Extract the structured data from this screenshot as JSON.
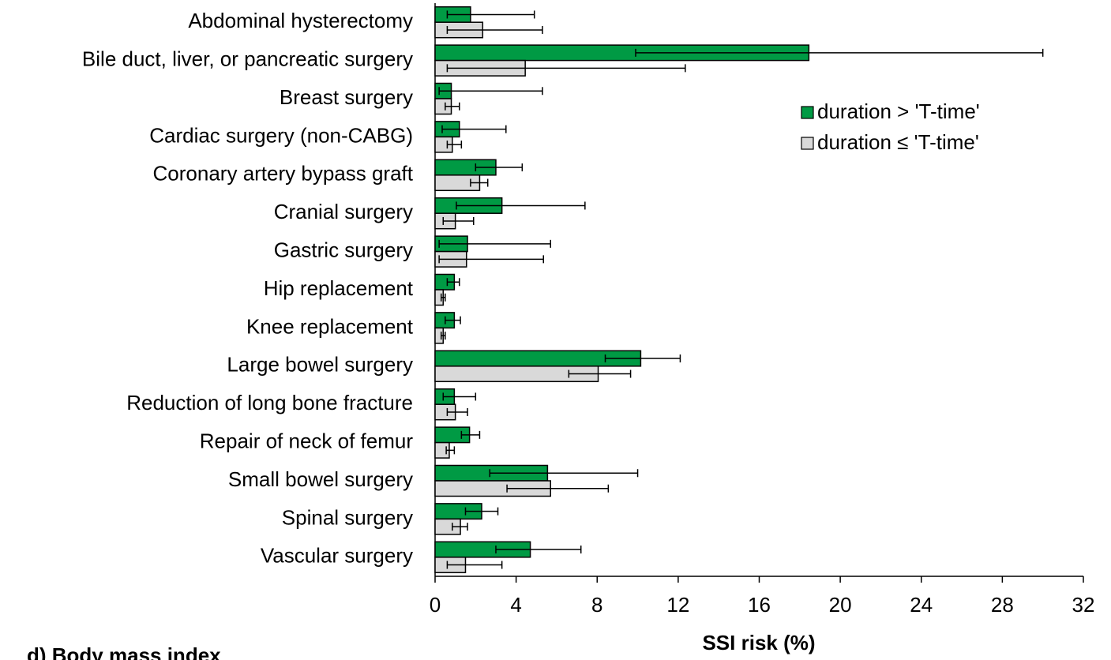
{
  "chart_data": {
    "type": "hbar_error",
    "xlabel": "SSI risk (%)",
    "categories": [
      "Abdominal hysterectomy",
      "Bile duct, liver, or pancreatic surgery",
      "Breast surgery",
      "Cardiac surgery (non-CABG)",
      "Coronary artery bypass graft",
      "Cranial surgery",
      "Gastric surgery",
      "Hip replacement",
      "Knee replacement",
      "Large bowel surgery",
      "Reduction of long bone fracture",
      "Repair of neck of femur",
      "Small bowel surgery",
      "Spinal surgery",
      "Vascular surgery"
    ],
    "series": [
      {
        "name": "duration > 'T-time'",
        "color": "#009a44",
        "values": [
          1.75,
          18.45,
          0.8,
          1.2,
          3.0,
          3.3,
          1.6,
          0.95,
          0.95,
          10.15,
          0.95,
          1.7,
          5.55,
          2.3,
          4.7
        ],
        "error_low": [
          0.6,
          9.9,
          0.2,
          0.35,
          2.0,
          1.05,
          0.2,
          0.6,
          0.5,
          8.4,
          0.4,
          1.3,
          2.7,
          1.5,
          3.0
        ],
        "error_high": [
          4.9,
          30.0,
          5.3,
          3.5,
          4.3,
          7.4,
          5.7,
          1.2,
          1.25,
          12.1,
          2.0,
          2.2,
          10.0,
          3.1,
          7.2
        ]
      },
      {
        "name": "duration ≤ 'T-time'",
        "color": "#d9d9d9",
        "values": [
          2.35,
          4.45,
          0.8,
          0.85,
          2.2,
          1.0,
          1.55,
          0.4,
          0.4,
          8.05,
          1.0,
          0.7,
          5.7,
          1.25,
          1.5
        ],
        "error_low": [
          0.6,
          0.6,
          0.5,
          0.6,
          1.75,
          0.4,
          0.2,
          0.3,
          0.3,
          6.6,
          0.6,
          0.55,
          3.55,
          0.85,
          0.6
        ],
        "error_high": [
          5.3,
          12.35,
          1.2,
          1.3,
          2.6,
          1.9,
          5.35,
          0.5,
          0.5,
          9.65,
          1.6,
          0.95,
          8.55,
          1.6,
          3.3
        ]
      }
    ],
    "xlim": [
      0,
      32
    ],
    "xticks": [
      0,
      4,
      8,
      12,
      16,
      20,
      24,
      28,
      32
    ],
    "legend": "upper right"
  },
  "next_panel_label": "d)  Body mass index"
}
